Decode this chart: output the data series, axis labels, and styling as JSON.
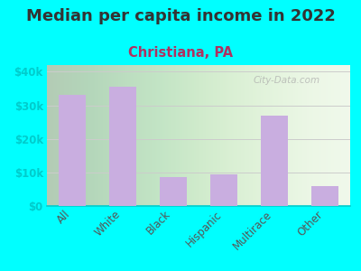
{
  "title": "Median per capita income in 2022",
  "subtitle": "Christiana, PA",
  "categories": [
    "All",
    "White",
    "Black",
    "Hispanic",
    "Multirace",
    "Other"
  ],
  "values": [
    33000,
    35500,
    8500,
    9500,
    27000,
    6000
  ],
  "bar_color": "#c9aee0",
  "background_outer": "#00ffff",
  "background_inner_left": "#d8f0c8",
  "background_inner_right": "#f5f5f0",
  "title_color": "#333333",
  "subtitle_color": "#b03060",
  "tick_label_color": "#555555",
  "ytick_label_color": "#00cccc",
  "ylabel_ticks": [
    0,
    10000,
    20000,
    30000,
    40000
  ],
  "ylabel_labels": [
    "$0",
    "$10k",
    "$20k",
    "$30k",
    "$40k"
  ],
  "ylim": [
    0,
    42000
  ],
  "watermark": "City-Data.com",
  "title_fontsize": 13,
  "subtitle_fontsize": 10.5
}
